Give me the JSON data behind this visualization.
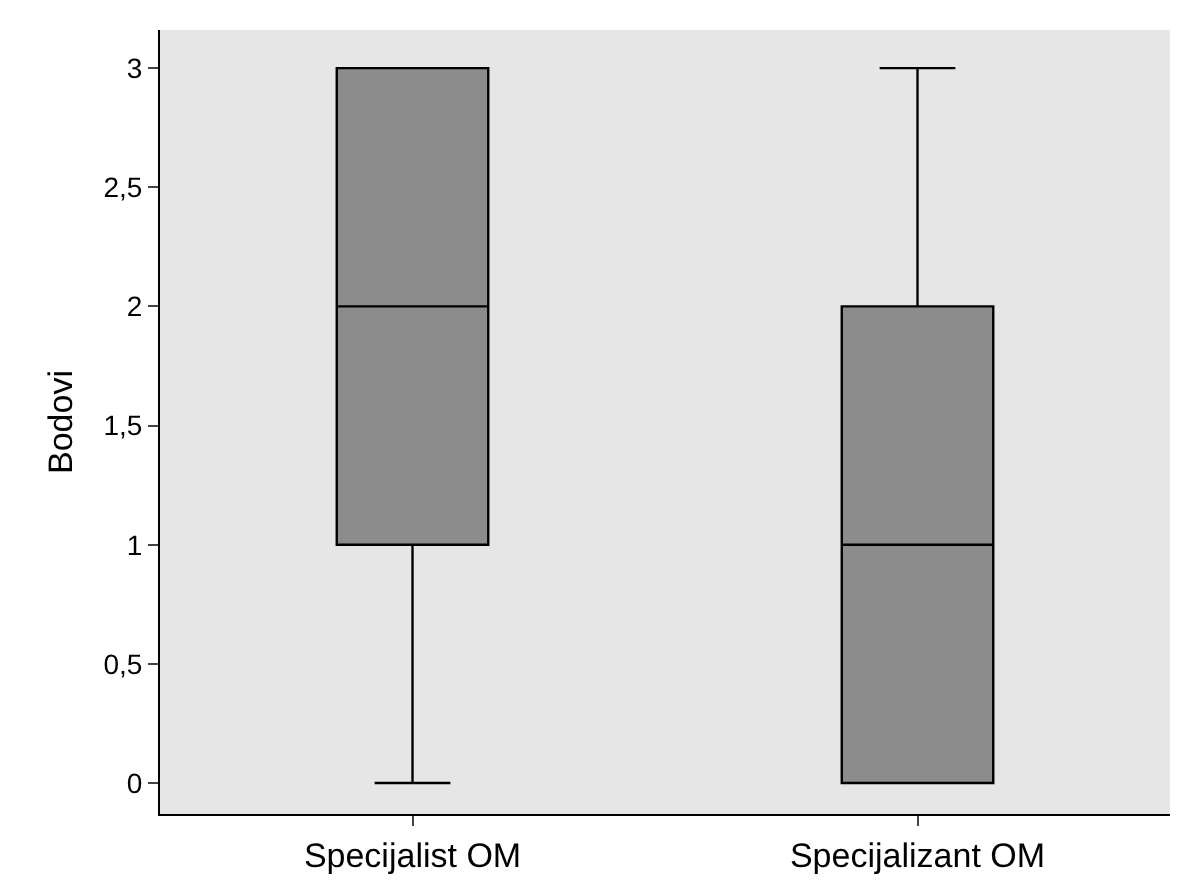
{
  "chart_data": {
    "type": "box",
    "ylabel": "Bodovi",
    "categories": [
      "Specijalist OM",
      "Specijalizant OM"
    ],
    "boxes": [
      {
        "low": 0,
        "q1": 1,
        "median": 2,
        "q3": 3,
        "high": 3
      },
      {
        "low": 0,
        "q1": 0,
        "median": 1,
        "q3": 2,
        "high": 3
      }
    ],
    "color": "#8c8c8c",
    "ylim": [
      -0.13,
      3.16
    ],
    "yticks": [
      0,
      {
        "value": 0.5,
        "label": "0,5"
      },
      1,
      {
        "value": 1.5,
        "label": "1,5"
      },
      2,
      {
        "value": 2.5,
        "label": "2,5"
      },
      3
    ],
    "grid": false
  }
}
